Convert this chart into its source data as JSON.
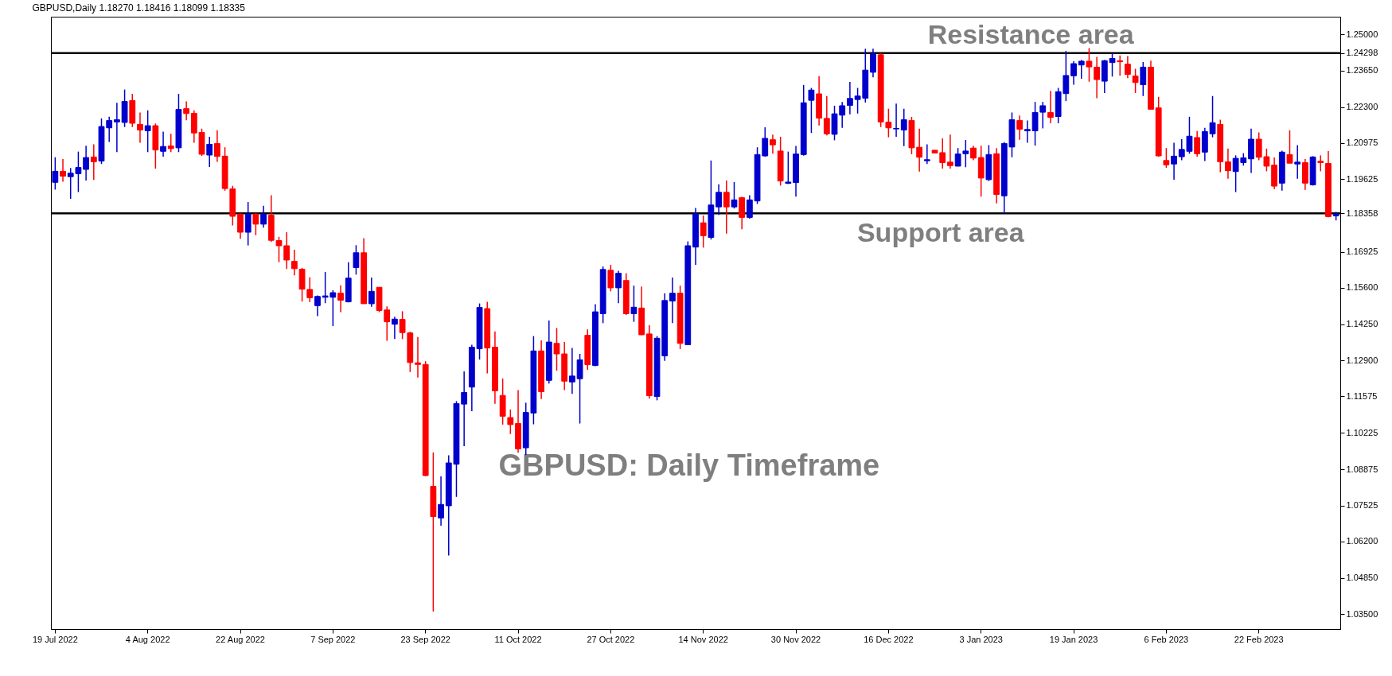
{
  "chart_data": {
    "type": "candlestick",
    "title": "GBPUSD,Daily 1.18270 1.18416 1.18099 1.18335",
    "annotations": [
      "GBPUSD: Daily Timeframe"
    ],
    "categories": [
      "19 Jul 2022",
      null,
      null,
      null,
      null,
      null,
      null,
      null,
      null,
      null,
      null,
      null,
      "4 Aug 2022",
      null,
      null,
      null,
      null,
      null,
      null,
      null,
      null,
      null,
      null,
      null,
      "22 Aug 2022",
      null,
      null,
      null,
      null,
      null,
      null,
      null,
      null,
      null,
      null,
      null,
      "7 Sep 2022",
      null,
      null,
      null,
      null,
      null,
      null,
      null,
      null,
      null,
      null,
      null,
      "23 Sep 2022",
      null,
      null,
      null,
      null,
      null,
      null,
      null,
      null,
      null,
      null,
      null,
      "11 Oct 2022",
      null,
      null,
      null,
      null,
      null,
      null,
      null,
      null,
      null,
      null,
      null,
      "27 Oct 2022",
      null,
      null,
      null,
      null,
      null,
      null,
      null,
      null,
      null,
      null,
      null,
      "14 Nov 2022",
      null,
      null,
      null,
      null,
      null,
      null,
      null,
      null,
      null,
      null,
      null,
      "30 Nov 2022",
      null,
      null,
      null,
      null,
      null,
      null,
      null,
      null,
      null,
      null,
      null,
      "16 Dec 2022",
      null,
      null,
      null,
      null,
      null,
      null,
      null,
      null,
      null,
      null,
      null,
      "3 Jan 2023",
      null,
      null,
      null,
      null,
      null,
      null,
      null,
      null,
      null,
      null,
      null,
      "19 Jan 2023",
      null,
      null,
      null,
      null,
      null,
      null,
      null,
      null,
      null,
      null,
      null,
      "6 Feb 2023",
      null,
      null,
      null,
      null,
      null,
      null,
      null,
      null,
      null,
      null,
      null,
      "22 Feb 2023",
      null,
      null,
      null,
      null,
      null,
      null,
      null,
      null,
      null,
      null
    ],
    "ohlc": [
      [
        1.1951,
        1.2044,
        1.1924,
        1.1992
      ],
      [
        1.1992,
        1.2037,
        1.1953,
        1.1974
      ],
      [
        1.1972,
        1.2004,
        1.189,
        1.1985
      ],
      [
        1.1983,
        1.2065,
        1.1915,
        1.2006
      ],
      [
        1.1999,
        1.2087,
        1.1958,
        1.2043
      ],
      [
        1.2045,
        1.2092,
        1.196,
        1.2027
      ],
      [
        1.203,
        1.2188,
        1.2019,
        1.2158
      ],
      [
        1.2153,
        1.2194,
        1.2101,
        1.218
      ],
      [
        1.2175,
        1.2246,
        1.2063,
        1.2183
      ],
      [
        1.2173,
        1.2295,
        1.2156,
        1.2251
      ],
      [
        1.2254,
        1.2279,
        1.2156,
        1.217
      ],
      [
        1.2166,
        1.221,
        1.2098,
        1.2145
      ],
      [
        1.2142,
        1.2218,
        1.2063,
        1.2161
      ],
      [
        1.2161,
        1.2169,
        1.2002,
        1.2071
      ],
      [
        1.2066,
        1.2139,
        1.2046,
        1.2084
      ],
      [
        1.2086,
        1.2131,
        1.2063,
        1.2076
      ],
      [
        1.2079,
        1.2279,
        1.2063,
        1.2221
      ],
      [
        1.2224,
        1.2251,
        1.2181,
        1.2206
      ],
      [
        1.2207,
        1.2218,
        1.2098,
        1.2134
      ],
      [
        1.2136,
        1.215,
        1.2049,
        1.2055
      ],
      [
        1.2052,
        1.212,
        1.2008,
        1.2092
      ],
      [
        1.2095,
        1.2144,
        1.2027,
        1.2047
      ],
      [
        1.2048,
        1.2081,
        1.192,
        1.1928
      ],
      [
        1.1927,
        1.1938,
        1.1791,
        1.1825
      ],
      [
        1.1833,
        1.1836,
        1.1742,
        1.1766
      ],
      [
        1.1766,
        1.1878,
        1.1717,
        1.1833
      ],
      [
        1.1833,
        1.1836,
        1.1755,
        1.1796
      ],
      [
        1.1796,
        1.1864,
        1.1783,
        1.1833
      ],
      [
        1.1829,
        1.1903,
        1.1731,
        1.1736
      ],
      [
        1.1735,
        1.1749,
        1.1655,
        1.1716
      ],
      [
        1.1716,
        1.1766,
        1.163,
        1.1663
      ],
      [
        1.1658,
        1.1701,
        1.1606,
        1.1631
      ],
      [
        1.1629,
        1.1634,
        1.1509,
        1.1555
      ],
      [
        1.1554,
        1.1599,
        1.1507,
        1.1523
      ],
      [
        1.1494,
        1.1532,
        1.1455,
        1.1528
      ],
      [
        1.1525,
        1.1619,
        1.1503,
        1.153
      ],
      [
        1.1525,
        1.1551,
        1.1418,
        1.1542
      ],
      [
        1.154,
        1.1569,
        1.147,
        1.1514
      ],
      [
        1.1508,
        1.1655,
        1.1506,
        1.1596
      ],
      [
        1.1635,
        1.1718,
        1.1609,
        1.169
      ],
      [
        1.169,
        1.1744,
        1.1501,
        1.1501
      ],
      [
        1.1501,
        1.1598,
        1.149,
        1.1547
      ],
      [
        1.1562,
        1.1562,
        1.147,
        1.1476
      ],
      [
        1.1478,
        1.1491,
        1.1364,
        1.1434
      ],
      [
        1.1425,
        1.1453,
        1.137,
        1.1444
      ],
      [
        1.1443,
        1.1473,
        1.137,
        1.1394
      ],
      [
        1.1393,
        1.1397,
        1.1248,
        1.1283
      ],
      [
        1.1282,
        1.1378,
        1.1227,
        1.1276
      ],
      [
        1.1276,
        1.1288,
        1.0862,
        1.0864
      ],
      [
        1.0824,
        1.095,
        1.036,
        1.0712
      ],
      [
        1.0707,
        1.0861,
        1.0678,
        1.0757
      ],
      [
        1.0752,
        1.0939,
        1.0568,
        1.0911
      ],
      [
        1.0906,
        1.114,
        1.0785,
        1.1131
      ],
      [
        1.1129,
        1.125,
        1.0973,
        1.1172
      ],
      [
        1.1192,
        1.1349,
        1.1103,
        1.134
      ],
      [
        1.1334,
        1.1502,
        1.1294,
        1.1487
      ],
      [
        1.1483,
        1.1508,
        1.1243,
        1.1337
      ],
      [
        1.134,
        1.1398,
        1.113,
        1.1178
      ],
      [
        1.1161,
        1.1224,
        1.1053,
        1.1084
      ],
      [
        1.1079,
        1.1109,
        1.1018,
        1.1053
      ],
      [
        1.1057,
        1.1181,
        1.0949,
        1.0963
      ],
      [
        1.0967,
        1.1134,
        1.094,
        1.1098
      ],
      [
        1.1096,
        1.1381,
        1.1054,
        1.1326
      ],
      [
        1.1326,
        1.1365,
        1.1148,
        1.1175
      ],
      [
        1.1217,
        1.1439,
        1.1205,
        1.1359
      ],
      [
        1.1354,
        1.1411,
        1.1253,
        1.1315
      ],
      [
        1.1315,
        1.1359,
        1.1181,
        1.1214
      ],
      [
        1.1211,
        1.1337,
        1.1167,
        1.1233
      ],
      [
        1.1223,
        1.1315,
        1.1057,
        1.1293
      ],
      [
        1.1384,
        1.1406,
        1.1256,
        1.1275
      ],
      [
        1.1272,
        1.1499,
        1.1269,
        1.1471
      ],
      [
        1.1464,
        1.1639,
        1.1429,
        1.1628
      ],
      [
        1.1625,
        1.1645,
        1.1547,
        1.156
      ],
      [
        1.156,
        1.1623,
        1.1503,
        1.1614
      ],
      [
        1.1587,
        1.1614,
        1.1459,
        1.1464
      ],
      [
        1.1464,
        1.1568,
        1.1434,
        1.1488
      ],
      [
        1.1485,
        1.1565,
        1.1384,
        1.1386
      ],
      [
        1.1389,
        1.1422,
        1.1149,
        1.116
      ],
      [
        1.1157,
        1.1381,
        1.1143,
        1.1373
      ],
      [
        1.1308,
        1.154,
        1.1289,
        1.1513
      ],
      [
        1.1511,
        1.1598,
        1.1429,
        1.154
      ],
      [
        1.154,
        1.1568,
        1.1333,
        1.1354
      ],
      [
        1.1349,
        1.1732,
        1.1349,
        1.1716
      ],
      [
        1.1711,
        1.1856,
        1.1645,
        1.1834
      ],
      [
        1.1801,
        1.1828,
        1.1709,
        1.1753
      ],
      [
        1.1747,
        1.2032,
        1.1739,
        1.1867
      ],
      [
        1.186,
        1.1944,
        1.183,
        1.1914
      ],
      [
        1.1914,
        1.1958,
        1.1761,
        1.186
      ],
      [
        1.186,
        1.1952,
        1.1854,
        1.1886
      ],
      [
        1.1894,
        1.1897,
        1.1777,
        1.1821
      ],
      [
        1.1821,
        1.1903,
        1.1816,
        1.1886
      ],
      [
        1.1882,
        1.2081,
        1.1871,
        1.2054
      ],
      [
        1.2049,
        1.2155,
        1.2046,
        1.2114
      ],
      [
        1.2109,
        1.2128,
        1.2057,
        1.209
      ],
      [
        1.2067,
        1.212,
        1.1939,
        1.1956
      ],
      [
        1.1947,
        1.2065,
        1.1945,
        1.1952
      ],
      [
        1.195,
        1.2086,
        1.1898,
        1.2056
      ],
      [
        1.2054,
        1.2312,
        1.205,
        1.2246
      ],
      [
        1.2255,
        1.2301,
        1.2134,
        1.2293
      ],
      [
        1.2279,
        1.2345,
        1.2162,
        1.2189
      ],
      [
        1.2188,
        1.2271,
        1.2125,
        1.2131
      ],
      [
        1.2129,
        1.2235,
        1.2107,
        1.2205
      ],
      [
        1.22,
        1.2249,
        1.2153,
        1.2235
      ],
      [
        1.2236,
        1.2323,
        1.2203,
        1.2262
      ],
      [
        1.2258,
        1.2301,
        1.2206,
        1.2271
      ],
      [
        1.2263,
        1.2446,
        1.2247,
        1.2367
      ],
      [
        1.2359,
        1.2446,
        1.234,
        1.2427
      ],
      [
        1.2424,
        1.243,
        1.2156,
        1.2175
      ],
      [
        1.2174,
        1.2224,
        1.2118,
        1.2153
      ],
      [
        1.2149,
        1.2243,
        1.212,
        1.2151
      ],
      [
        1.2145,
        1.2224,
        1.2085,
        1.2183
      ],
      [
        1.218,
        1.2194,
        1.2055,
        1.2079
      ],
      [
        1.2081,
        1.215,
        1.1991,
        1.2044
      ],
      [
        1.2031,
        1.2092,
        1.2019,
        1.2035
      ],
      [
        1.207,
        1.207,
        1.206,
        1.206
      ],
      [
        1.2061,
        1.2114,
        1.2002,
        1.2024
      ],
      [
        1.2026,
        1.2128,
        1.2002,
        1.2013
      ],
      [
        1.2011,
        1.2078,
        1.201,
        1.2056
      ],
      [
        1.2057,
        1.2108,
        1.2007,
        1.2067
      ],
      [
        1.2078,
        1.2087,
        1.2033,
        1.2041
      ],
      [
        1.2043,
        1.2087,
        1.1898,
        1.1967
      ],
      [
        1.1961,
        1.2089,
        1.1956,
        1.2054
      ],
      [
        1.2057,
        1.2078,
        1.1873,
        1.1906
      ],
      [
        1.1901,
        1.21,
        1.1837,
        1.2095
      ],
      [
        1.2082,
        1.221,
        1.2044,
        1.2183
      ],
      [
        1.218,
        1.2199,
        1.2109,
        1.2148
      ],
      [
        1.2142,
        1.218,
        1.2098,
        1.2147
      ],
      [
        1.2142,
        1.2249,
        1.2087,
        1.221
      ],
      [
        1.2211,
        1.2249,
        1.2151,
        1.2235
      ],
      [
        1.221,
        1.229,
        1.217,
        1.2192
      ],
      [
        1.2195,
        1.2301,
        1.217,
        1.2287
      ],
      [
        1.228,
        1.2438,
        1.2252,
        1.2347
      ],
      [
        1.2346,
        1.24,
        1.2313,
        1.2391
      ],
      [
        1.2386,
        1.2405,
        1.2335,
        1.24
      ],
      [
        1.24,
        1.2449,
        1.2324,
        1.2379
      ],
      [
        1.2378,
        1.2416,
        1.2263,
        1.2332
      ],
      [
        1.2326,
        1.2405,
        1.2282,
        1.2402
      ],
      [
        1.2395,
        1.243,
        1.2343,
        1.241
      ],
      [
        1.2402,
        1.2421,
        1.2346,
        1.2398
      ],
      [
        1.2389,
        1.2419,
        1.2337,
        1.2351
      ],
      [
        1.2345,
        1.2372,
        1.2282,
        1.2321
      ],
      [
        1.2313,
        1.2397,
        1.2271,
        1.2378
      ],
      [
        1.2378,
        1.2402,
        1.2222,
        1.2222
      ],
      [
        1.2227,
        1.2268,
        1.2046,
        1.2049
      ],
      [
        1.2032,
        1.2078,
        1.2005,
        1.2016
      ],
      [
        1.2019,
        1.2098,
        1.1961,
        1.2048
      ],
      [
        1.2046,
        1.2111,
        1.2033,
        1.2073
      ],
      [
        1.2066,
        1.2194,
        1.2057,
        1.2122
      ],
      [
        1.2117,
        1.2141,
        1.2046,
        1.2057
      ],
      [
        1.2063,
        1.2153,
        1.203,
        1.2139
      ],
      [
        1.2131,
        1.2271,
        1.2118,
        1.2172
      ],
      [
        1.2166,
        1.2183,
        1.1989,
        1.2027
      ],
      [
        1.2027,
        1.2076,
        1.1964,
        1.1994
      ],
      [
        1.1991,
        1.2051,
        1.1915,
        1.204
      ],
      [
        1.2024,
        1.2059,
        1.2013,
        1.2042
      ],
      [
        1.2038,
        1.215,
        1.1986,
        1.2111
      ],
      [
        1.2111,
        1.2136,
        1.2033,
        1.2044
      ],
      [
        1.2046,
        1.2076,
        1.1992,
        1.2011
      ],
      [
        1.2015,
        1.2043,
        1.1926,
        1.1937
      ],
      [
        1.1948,
        1.2068,
        1.192,
        1.2063
      ],
      [
        1.2054,
        1.2144,
        1.2022,
        1.2022
      ],
      [
        1.2019,
        1.2089,
        1.1964,
        1.2026
      ],
      [
        1.2024,
        1.2037,
        1.1923,
        1.1948
      ],
      [
        1.1942,
        1.2048,
        1.1939,
        1.2045
      ],
      [
        1.2029,
        1.2051,
        1.1992,
        1.2024
      ],
      [
        1.2021,
        1.2067,
        1.1821,
        1.1824
      ],
      [
        1.1827,
        1.18416,
        1.18099,
        1.18335
      ]
    ],
    "colors": [
      "#0000cd",
      "#ff0000",
      "#0000cd",
      "#0000cd",
      "#0000cd",
      "#ff0000",
      "#0000cd",
      "#0000cd",
      "#0000cd",
      "#0000cd",
      "#ff0000",
      "#ff0000",
      "#0000cd",
      "#ff0000",
      "#0000cd",
      "#ff0000",
      "#0000cd",
      "#ff0000",
      "#ff0000",
      "#ff0000",
      "#0000cd",
      "#ff0000",
      "#ff0000",
      "#ff0000",
      "#ff0000",
      "#0000cd",
      "#ff0000",
      "#0000cd",
      "#ff0000",
      "#ff0000",
      "#ff0000",
      "#ff0000",
      "#ff0000",
      "#ff0000",
      "#0000cd",
      "#0000cd",
      "#0000cd",
      "#ff0000",
      "#0000cd",
      "#0000cd",
      "#ff0000",
      "#0000cd",
      "#ff0000",
      "#ff0000",
      "#0000cd",
      "#ff0000",
      "#ff0000",
      "#ff0000",
      "#ff0000",
      "#ff0000",
      "#0000cd",
      "#0000cd",
      "#0000cd",
      "#0000cd",
      "#0000cd",
      "#0000cd",
      "#ff0000",
      "#ff0000",
      "#ff0000",
      "#ff0000",
      "#ff0000",
      "#0000cd",
      "#0000cd",
      "#ff0000",
      "#0000cd",
      "#ff0000",
      "#ff0000",
      "#0000cd",
      "#0000cd",
      "#ff0000",
      "#0000cd",
      "#0000cd",
      "#ff0000",
      "#0000cd",
      "#ff0000",
      "#0000cd",
      "#ff0000",
      "#ff0000",
      "#0000cd",
      "#0000cd",
      "#0000cd",
      "#ff0000",
      "#0000cd",
      "#0000cd",
      "#ff0000",
      "#0000cd",
      "#0000cd",
      "#ff0000",
      "#0000cd",
      "#ff0000",
      "#0000cd",
      "#0000cd",
      "#0000cd",
      "#ff0000",
      "#ff0000",
      "#0000cd",
      "#0000cd",
      "#0000cd",
      "#0000cd",
      "#ff0000",
      "#ff0000",
      "#0000cd",
      "#0000cd",
      "#0000cd",
      "#0000cd",
      "#0000cd",
      "#0000cd",
      "#ff0000",
      "#ff0000",
      "#0000cd",
      "#0000cd",
      "#ff0000",
      "#ff0000",
      "#0000cd",
      "#ff0000",
      "#ff0000",
      "#ff0000",
      "#0000cd",
      "#0000cd",
      "#ff0000",
      "#ff0000",
      "#0000cd",
      "#ff0000",
      "#0000cd",
      "#0000cd",
      "#ff0000",
      "#0000cd",
      "#0000cd",
      "#0000cd",
      "#ff0000",
      "#0000cd",
      "#0000cd",
      "#0000cd",
      "#0000cd",
      "#ff0000",
      "#ff0000",
      "#0000cd",
      "#0000cd",
      "#ff0000",
      "#ff0000",
      "#ff0000",
      "#0000cd",
      "#ff0000",
      "#ff0000",
      "#ff0000",
      "#0000cd",
      "#0000cd",
      "#0000cd",
      "#ff0000",
      "#0000cd",
      "#0000cd",
      "#ff0000",
      "#ff0000",
      "#0000cd",
      "#0000cd",
      "#0000cd",
      "#ff0000",
      "#ff0000",
      "#ff0000",
      "#0000cd",
      "#ff0000",
      "#0000cd",
      "#ff0000",
      "#0000cd",
      "#ff0000",
      "#ff0000",
      "#0000cd"
    ],
    "ylim": [
      1.0295,
      1.2565
    ],
    "yticks": [
      {
        "value": 1.035,
        "label": "1.03500"
      },
      {
        "value": 1.0485,
        "label": "1.04850"
      },
      {
        "value": 1.062,
        "label": "1.06200"
      },
      {
        "value": 1.07525,
        "label": "1.07525"
      },
      {
        "value": 1.08875,
        "label": "1.08875"
      },
      {
        "value": 1.10225,
        "label": "1.10225"
      },
      {
        "value": 1.11575,
        "label": "1.11575"
      },
      {
        "value": 1.129,
        "label": "1.12900"
      },
      {
        "value": 1.1425,
        "label": "1.14250"
      },
      {
        "value": 1.156,
        "label": "1.15600"
      },
      {
        "value": 1.16925,
        "label": "1.16925"
      },
      1.18358,
      {
        "value": 1.19625,
        "label": "1.19625"
      },
      {
        "value": 1.20975,
        "label": "1.20975"
      },
      {
        "value": 1.223,
        "label": "1.22300"
      },
      {
        "value": 1.2365,
        "label": "1.23650"
      },
      1.24298,
      {
        "value": 1.25,
        "label": "1.25000"
      }
    ],
    "ref_lines": [
      {
        "axis": "y",
        "value": 1.24298,
        "label": "Resistance area",
        "color": "#000000"
      },
      {
        "axis": "y",
        "value": 1.18358,
        "label": "Support area",
        "color": "#000000"
      }
    ],
    "grid": false
  }
}
